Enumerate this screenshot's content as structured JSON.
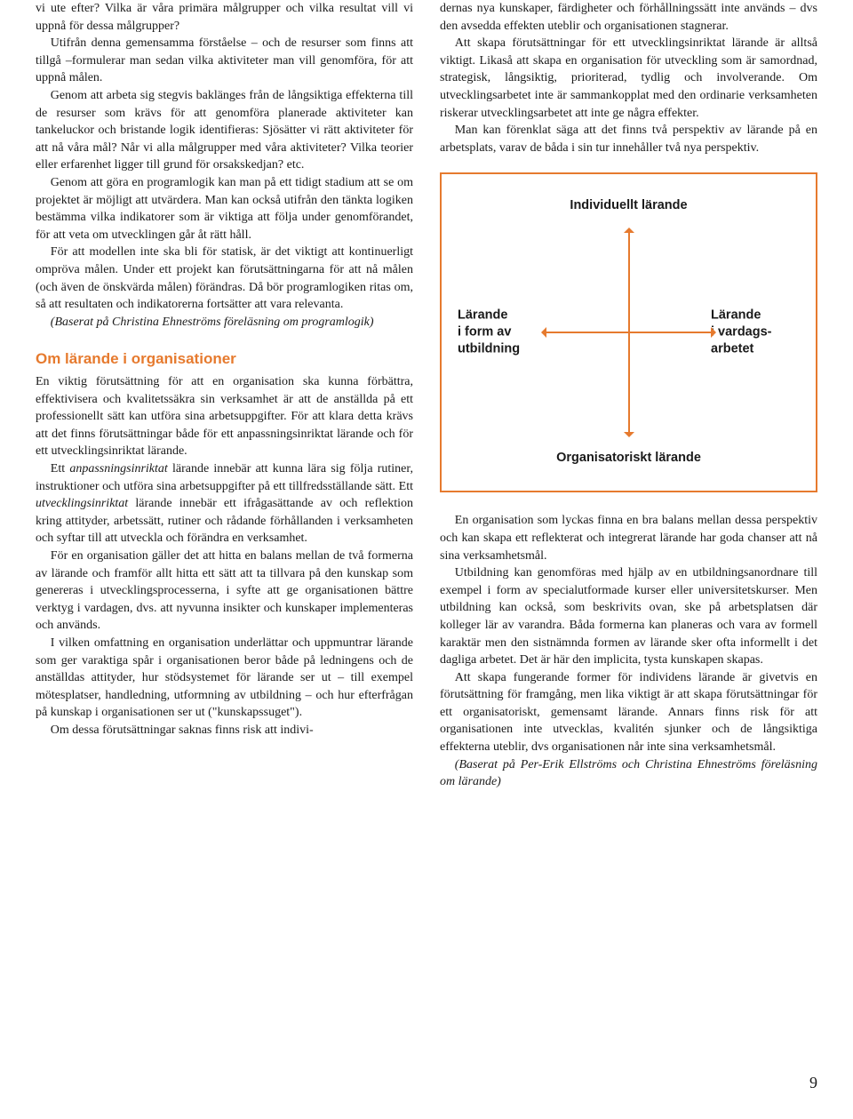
{
  "left_column": {
    "p1": "vi ute efter? Vilka är våra primära målgrupper och vilka resultat vill vi uppnå för dessa målgrupper?",
    "p2": "Utifrån denna gemensamma förståelse – och de resurser som finns att tillgå –formulerar man sedan vilka aktiviteter man vill genomföra, för att uppnå målen.",
    "p3": "Genom att arbeta sig stegvis baklänges från de långsiktiga effekterna till de resurser som krävs för att genomföra planerade aktiviteter kan tankeluckor och bristande logik identifieras: Sjösätter vi rätt aktiviteter för att nå våra mål? Når vi alla målgrupper med våra aktiviteter? Vilka teorier eller erfarenhet ligger till grund för orsakskedjan? etc.",
    "p4": "Genom att göra en programlogik kan man på ett tidigt stadium att se om projektet är möjligt att utvärdera. Man kan också utifrån den tänkta logiken bestämma vilka indikatorer som är viktiga att följa under genomförandet, för att veta om utvecklingen går åt rätt håll.",
    "p5": "För att modellen inte ska bli för statisk, är det viktigt att kontinuerligt ompröva målen. Under ett projekt kan förutsättningarna för att nå målen (och även de önskvärda målen) förändras. Då bör programlogiken ritas om, så att resultaten och indikatorerna fortsätter att vara relevanta.",
    "p6": "(Baserat på Christina Ehneströms föreläsning om programlogik)",
    "section_heading": "Om lärande i organisationer",
    "p7_a": "En viktig förutsättning för att en organisation ska kunna förbättra, effektivisera och kvalitetssäkra sin verksamhet är att de anställda på ett professionellt sätt kan utföra sina arbetsuppgifter. För att klara detta krävs att det finns förutsättningar både för ett anpassningsinriktat lärande och för ett utvecklingsinriktat lärande.",
    "p8_a": "Ett ",
    "p8_b": "anpassningsinriktat",
    "p8_c": " lärande innebär att kunna lära sig följa rutiner, instruktioner och utföra sina arbetsuppgifter på ett tillfredsställande sätt. Ett ",
    "p8_d": "utvecklingsinriktat",
    "p8_e": " lärande innebär ett ifrågasättande av och reflektion kring attityder, arbetssätt, rutiner och rådande förhållanden i verksamheten och syftar till att utveckla och förändra en verksamhet.",
    "p9": "För en organisation gäller det att hitta en balans mellan de två formerna av lärande och framför allt hitta ett sätt att ta tillvara på den kunskap som genereras i utvecklingsprocesserna, i syfte att ge organisationen bättre verktyg i vardagen, dvs. att nyvunna insikter och kunskaper implementeras och används.",
    "p10": "I vilken omfattning en organisation underlättar och uppmuntrar lärande som ger varaktiga spår i organisationen beror både på ledningens och de anställdas attityder, hur stödsystemet för lärande ser ut – till exempel mötesplatser, handledning, utformning av utbildning – och hur efterfrågan på kunskap i organisationen ser ut (\"kunskapssuget\").",
    "p11": "Om dessa förutsättningar saknas finns risk att indivi-"
  },
  "right_column": {
    "p1": "dernas nya kunskaper, färdigheter och förhållningssätt inte används – dvs den avsedda effekten uteblir och organisationen stagnerar.",
    "p2": "Att skapa förutsättningar för ett utvecklingsinriktat lärande är alltså viktigt. Likaså att skapa en organisation för utveckling som är samordnad, strategisk, långsiktig, prioriterad, tydlig och involverande. Om utvecklingsarbetet inte är sammankopplat med den ordinarie verksamheten riskerar utvecklingsarbetet att inte ge några effekter.",
    "p3": "Man kan förenklat säga att det finns två perspektiv av lärande på en arbetsplats, varav de båda i sin tur innehåller två nya perspektiv.",
    "p4": "En organisation som lyckas finna en bra balans mellan dessa perspektiv och kan skapa ett reflekterat och integrerat lärande har goda chanser att nå sina verksamhetsmål.",
    "p5": "Utbildning kan genomföras med hjälp av en utbildningsanordnare till exempel i form av specialutformade kurser eller universitetskurser. Men utbildning kan också, som beskrivits ovan, ske på arbetsplatsen där kolleger lär av varandra. Båda formerna kan planeras och vara av formell karaktär men den sistnämnda formen av lärande sker ofta informellt i det dagliga arbetet. Det är här den implicita, tysta kunskapen skapas.",
    "p6": "Att skapa fungerande former för individens lärande är givetvis en förutsättning för framgång, men lika viktigt är att skapa förutsättningar för ett organisatoriskt, gemensamt lärande. Annars finns risk för att organisationen inte utvecklas, kvalitén sjunker och de långsiktiga effekterna uteblir, dvs organisationen når inte sina verksamhetsmål.",
    "p7": "(Baserat på Per-Erik Ellströms och Christina Ehneströms föreläsning om lärande)"
  },
  "diagram": {
    "top": "Individuellt lärande",
    "bottom": "Organisatoriskt lärande",
    "left_l1": "Lärande",
    "left_l2": "i form av",
    "left_l3": "utbildning",
    "right_l1": "Lärande",
    "right_l2": "i vardags-",
    "right_l3": "arbetet",
    "border_color": "#e67a2e",
    "arrow_color": "#e67a2e"
  },
  "page_number": "9"
}
